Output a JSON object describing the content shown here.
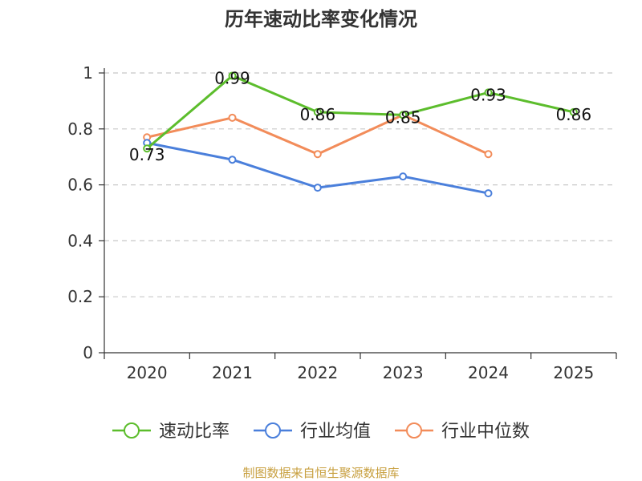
{
  "chart_data": {
    "type": "line",
    "title": "历年速动比率变化情况",
    "xlabel": "",
    "ylabel": "",
    "categories": [
      "2020",
      "2021",
      "2022",
      "2023",
      "2024",
      "2025"
    ],
    "ylim": [
      0,
      1
    ],
    "yticks": [
      "0",
      "0.2",
      "0.4",
      "0.6",
      "0.8",
      "1"
    ],
    "grid": true,
    "legend_position": "bottom",
    "series": [
      {
        "name": "速动比率",
        "color": "#5cbd2c",
        "values": [
          0.73,
          0.99,
          0.86,
          0.85,
          0.93,
          0.86
        ],
        "labels": [
          "0.73",
          "0.99",
          "0.86",
          "0.85",
          "0.93",
          "0.86"
        ]
      },
      {
        "name": "行业均值",
        "color": "#4a7fdb",
        "values": [
          0.75,
          0.69,
          0.59,
          0.63,
          0.57,
          null
        ],
        "labels": []
      },
      {
        "name": "行业中位数",
        "color": "#f28c5a",
        "values": [
          0.77,
          0.84,
          0.71,
          0.85,
          0.71,
          null
        ],
        "labels": []
      }
    ]
  },
  "source_text": "制图数据来自恒生聚源数据库"
}
